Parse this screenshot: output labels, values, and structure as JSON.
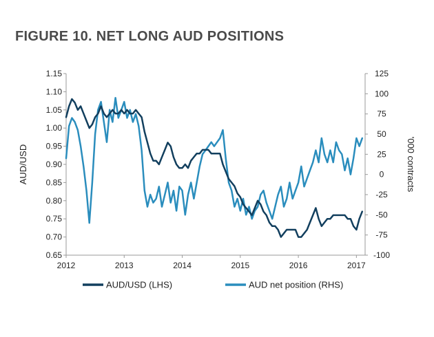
{
  "title": "FIGURE 10. NET LONG AUD POSITIONS",
  "chart_data": {
    "type": "line",
    "title": "FIGURE 10. NET LONG AUD POSITIONS",
    "xlabel": "",
    "ylabel_left": "AUD/USD",
    "ylabel_right": "'000 contracts",
    "xlim": [
      2012.0,
      2017.15
    ],
    "ylim_left": [
      0.65,
      1.15
    ],
    "ylim_right": [
      -100,
      125
    ],
    "x_ticks": [
      2012,
      2013,
      2014,
      2015,
      2016,
      2017
    ],
    "x_tick_labels": [
      "2012",
      "2013",
      "2014",
      "2015",
      "2016",
      "2017"
    ],
    "y_left_ticks": [
      1.15,
      1.1,
      1.05,
      1.0,
      0.95,
      0.9,
      0.85,
      0.8,
      0.75,
      0.7,
      0.65
    ],
    "y_left_tick_labels": [
      "1.15",
      "1.10",
      "1.05",
      "1.00",
      "0.95",
      "0.90",
      "0.85",
      "0.80",
      "0.75",
      "0.70",
      "0.65"
    ],
    "y_right_ticks": [
      125,
      100,
      75,
      50,
      25,
      0,
      -25,
      -50,
      -75,
      -100
    ],
    "y_right_tick_labels": [
      "125",
      "100",
      "75",
      "50",
      "25",
      "0",
      "-25",
      "-50",
      "-75",
      "-100"
    ],
    "legend_position": "bottom",
    "series": [
      {
        "name": "AUD/USD (LHS)",
        "axis": "left",
        "color": "#123f5e",
        "x": [
          2012.0,
          2012.05,
          2012.1,
          2012.15,
          2012.2,
          2012.25,
          2012.3,
          2012.35,
          2012.4,
          2012.45,
          2012.5,
          2012.55,
          2012.6,
          2012.65,
          2012.7,
          2012.75,
          2012.8,
          2012.85,
          2012.9,
          2012.95,
          2013.0,
          2013.05,
          2013.1,
          2013.15,
          2013.2,
          2013.25,
          2013.3,
          2013.35,
          2013.4,
          2013.45,
          2013.5,
          2013.55,
          2013.6,
          2013.65,
          2013.7,
          2013.75,
          2013.8,
          2013.85,
          2013.9,
          2013.95,
          2014.0,
          2014.05,
          2014.1,
          2014.15,
          2014.2,
          2014.25,
          2014.3,
          2014.35,
          2014.4,
          2014.45,
          2014.5,
          2014.55,
          2014.6,
          2014.65,
          2014.7,
          2014.75,
          2014.8,
          2014.85,
          2014.9,
          2014.95,
          2015.0,
          2015.05,
          2015.1,
          2015.15,
          2015.2,
          2015.25,
          2015.3,
          2015.35,
          2015.4,
          2015.45,
          2015.5,
          2015.55,
          2015.6,
          2015.65,
          2015.7,
          2015.75,
          2015.8,
          2015.85,
          2015.9,
          2015.95,
          2016.0,
          2016.05,
          2016.1,
          2016.15,
          2016.2,
          2016.25,
          2016.3,
          2016.35,
          2016.4,
          2016.45,
          2016.5,
          2016.55,
          2016.6,
          2016.65,
          2016.7,
          2016.75,
          2016.8,
          2016.85,
          2016.9,
          2016.95,
          2017.0,
          2017.05,
          2017.1
        ],
        "values": [
          1.03,
          1.06,
          1.08,
          1.07,
          1.05,
          1.06,
          1.04,
          1.02,
          1.0,
          1.01,
          1.03,
          1.04,
          1.06,
          1.04,
          1.03,
          1.04,
          1.05,
          1.04,
          1.04,
          1.05,
          1.04,
          1.05,
          1.04,
          1.04,
          1.05,
          1.04,
          1.03,
          0.99,
          0.96,
          0.93,
          0.91,
          0.91,
          0.9,
          0.92,
          0.94,
          0.96,
          0.95,
          0.92,
          0.9,
          0.89,
          0.89,
          0.9,
          0.89,
          0.91,
          0.92,
          0.93,
          0.93,
          0.94,
          0.94,
          0.94,
          0.93,
          0.93,
          0.93,
          0.93,
          0.9,
          0.88,
          0.86,
          0.85,
          0.84,
          0.82,
          0.81,
          0.79,
          0.78,
          0.77,
          0.76,
          0.78,
          0.8,
          0.79,
          0.77,
          0.76,
          0.74,
          0.73,
          0.73,
          0.72,
          0.7,
          0.71,
          0.72,
          0.72,
          0.72,
          0.72,
          0.7,
          0.7,
          0.71,
          0.72,
          0.74,
          0.76,
          0.78,
          0.75,
          0.73,
          0.74,
          0.75,
          0.75,
          0.76,
          0.76,
          0.76,
          0.76,
          0.76,
          0.75,
          0.75,
          0.73,
          0.72,
          0.75,
          0.77
        ]
      },
      {
        "name": "AUD net position (RHS)",
        "axis": "right",
        "color": "#2a8dbd",
        "x": [
          2012.0,
          2012.05,
          2012.1,
          2012.15,
          2012.2,
          2012.25,
          2012.3,
          2012.35,
          2012.4,
          2012.45,
          2012.5,
          2012.55,
          2012.6,
          2012.65,
          2012.7,
          2012.75,
          2012.8,
          2012.85,
          2012.9,
          2012.95,
          2013.0,
          2013.05,
          2013.1,
          2013.15,
          2013.2,
          2013.25,
          2013.3,
          2013.35,
          2013.4,
          2013.45,
          2013.5,
          2013.55,
          2013.6,
          2013.65,
          2013.7,
          2013.75,
          2013.8,
          2013.85,
          2013.9,
          2013.95,
          2014.0,
          2014.05,
          2014.1,
          2014.15,
          2014.2,
          2014.25,
          2014.3,
          2014.35,
          2014.4,
          2014.45,
          2014.5,
          2014.55,
          2014.6,
          2014.65,
          2014.7,
          2014.75,
          2014.8,
          2014.85,
          2014.9,
          2014.95,
          2015.0,
          2015.05,
          2015.1,
          2015.15,
          2015.2,
          2015.25,
          2015.3,
          2015.35,
          2015.4,
          2015.45,
          2015.5,
          2015.55,
          2015.6,
          2015.65,
          2015.7,
          2015.75,
          2015.8,
          2015.85,
          2015.9,
          2015.95,
          2016.0,
          2016.05,
          2016.1,
          2016.15,
          2016.2,
          2016.25,
          2016.3,
          2016.35,
          2016.4,
          2016.45,
          2016.5,
          2016.55,
          2016.6,
          2016.65,
          2016.7,
          2016.75,
          2016.8,
          2016.85,
          2016.9,
          2016.95,
          2017.0,
          2017.05,
          2017.1
        ],
        "values": [
          20,
          60,
          70,
          65,
          55,
          35,
          10,
          -20,
          -60,
          -10,
          50,
          80,
          90,
          65,
          40,
          80,
          65,
          95,
          70,
          80,
          90,
          70,
          80,
          65,
          75,
          60,
          30,
          -20,
          -40,
          -25,
          -35,
          -30,
          -15,
          -40,
          -25,
          -10,
          -35,
          -20,
          -45,
          -15,
          -20,
          -50,
          -25,
          -10,
          -30,
          -10,
          10,
          25,
          30,
          35,
          40,
          35,
          40,
          45,
          55,
          20,
          -10,
          -20,
          -40,
          -30,
          -45,
          -30,
          -50,
          -40,
          -55,
          -45,
          -40,
          -25,
          -20,
          -35,
          -45,
          -55,
          -40,
          -25,
          -15,
          -40,
          -30,
          -10,
          -30,
          -20,
          -10,
          10,
          -15,
          -5,
          5,
          15,
          30,
          15,
          45,
          25,
          15,
          30,
          15,
          40,
          30,
          25,
          5,
          20,
          0,
          20,
          45,
          35,
          45
        ]
      }
    ]
  }
}
